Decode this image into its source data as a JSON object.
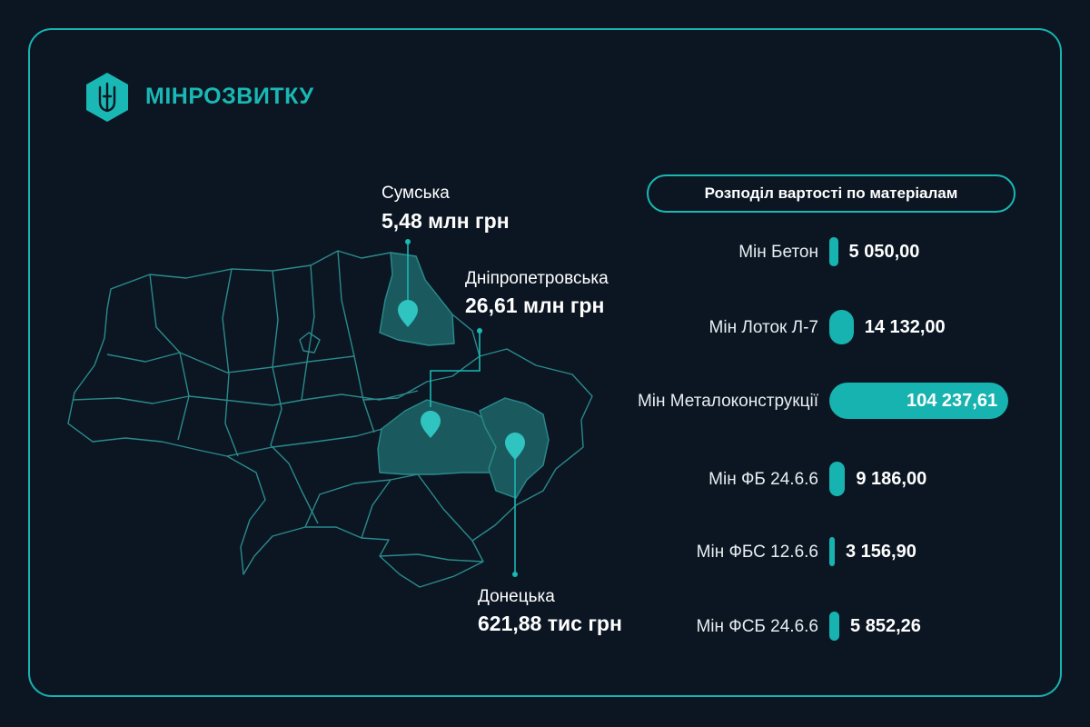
{
  "brand": {
    "name": "МІНРОЗВИТКУ",
    "emblem_icon": "trident-icon"
  },
  "colors": {
    "accent": "#19b8b4",
    "background": "#0b1622",
    "region_fill": "#1a5a5e",
    "map_line": "#2a8a8c"
  },
  "regions": [
    {
      "name": "Сумська",
      "value": "5,48 млн грн"
    },
    {
      "name": "Дніпропетровська",
      "value": "26,61 млн грн"
    },
    {
      "name": "Донецька",
      "value": "621,88 тис грн"
    }
  ],
  "chart_data": {
    "type": "bar",
    "orientation": "horizontal",
    "title": "Розподіл вартості по матеріалам",
    "categories": [
      "Мін Бетон",
      "Мін Лоток Л-7",
      "Мін Металоконструкції",
      "Мін ФБ 24.6.6",
      "Мін ФБС 12.6.6",
      "Мін ФСБ 24.6.6"
    ],
    "values": [
      5050.0,
      14132.0,
      104237.61,
      9186.0,
      3156.9,
      5852.26
    ],
    "value_labels": [
      "5 050,00",
      "14 132,00",
      "104 237,61",
      "9 186,00",
      "3 156,90",
      "5 852,26"
    ],
    "grid": false
  }
}
